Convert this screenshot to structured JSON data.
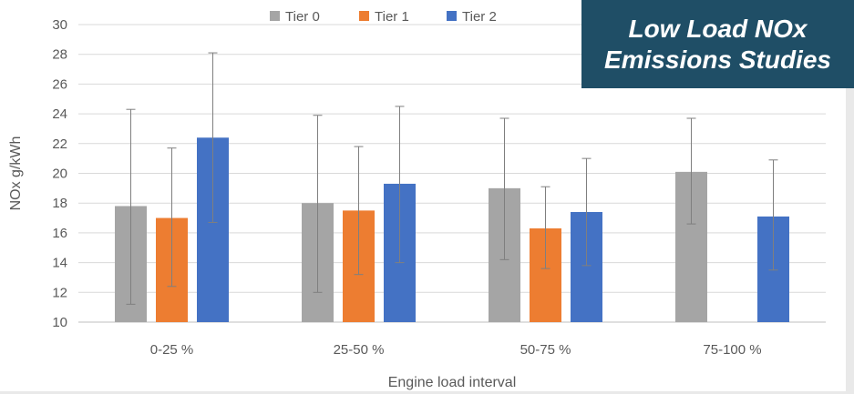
{
  "title_box": {
    "line1": "Low Load NOx",
    "line2": "Emissions Studies"
  },
  "chart_data": {
    "type": "bar",
    "xlabel": "Engine load interval",
    "ylabel": "NOx g/kWh",
    "ylim": [
      10,
      30
    ],
    "yticks": [
      10,
      12,
      14,
      16,
      18,
      20,
      22,
      24,
      26,
      28,
      30
    ],
    "grid": true,
    "legend_position": "top",
    "categories": [
      "0-25 %",
      "25-50 %",
      "50-75 %",
      "75-100 %"
    ],
    "series": [
      {
        "name": "Tier 0",
        "color": "#a5a5a5",
        "values": [
          17.8,
          18.0,
          19.0,
          20.1
        ],
        "error_low": [
          11.2,
          12.0,
          14.2,
          16.6
        ],
        "error_high": [
          24.3,
          23.9,
          23.7,
          23.7
        ]
      },
      {
        "name": "Tier 1",
        "color": "#ed7d31",
        "values": [
          17.0,
          17.5,
          16.3,
          null
        ],
        "error_low": [
          12.4,
          13.2,
          13.6,
          null
        ],
        "error_high": [
          21.7,
          21.8,
          19.1,
          null
        ]
      },
      {
        "name": "Tier 2",
        "color": "#4472c4",
        "values": [
          22.4,
          19.3,
          17.4,
          17.1
        ],
        "error_low": [
          16.7,
          14.0,
          13.8,
          13.5
        ],
        "error_high": [
          28.1,
          24.5,
          21.0,
          20.9
        ]
      }
    ]
  }
}
